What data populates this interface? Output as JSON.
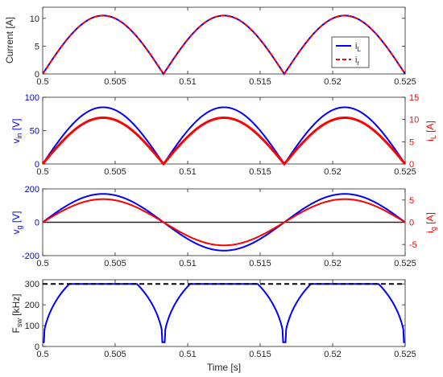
{
  "xlabel": "Time [s]",
  "legend": {
    "iL": "i",
    "iL_sub": "L",
    "ir": "i",
    "ir_sub": "r"
  },
  "chart_data": [
    {
      "type": "line",
      "id": "current",
      "ylabel": "Current [A]",
      "xlim": [
        0.5,
        0.525
      ],
      "ylim": [
        0,
        12
      ],
      "yticks": [
        "0",
        "5",
        "10"
      ],
      "xticks": [
        "0.5",
        "0.505",
        "0.51",
        "0.515",
        "0.52",
        "0.525"
      ],
      "series": [
        {
          "name": "iL",
          "color": "#0000ff",
          "style": "solid",
          "peak": 10.5,
          "shape": "abs-sine",
          "f": 60
        },
        {
          "name": "ir",
          "color": "#ff0000",
          "style": "dashed",
          "peak": 10.5,
          "shape": "abs-sine",
          "f": 60
        }
      ],
      "legend_position": "right"
    },
    {
      "type": "line",
      "id": "vin-il",
      "ylabel_left": "v",
      "ylabel_left_sub": "in",
      "ylabel_left_unit": "[V]",
      "ylabel_right": "i",
      "ylabel_right_sub": "L",
      "ylabel_right_unit": "[A]",
      "xlim": [
        0.5,
        0.525
      ],
      "ylim_left": [
        0,
        100
      ],
      "ylim_right": [
        0,
        15
      ],
      "yticks_left": [
        "0",
        "50",
        "100"
      ],
      "yticks_right": [
        "0",
        "5",
        "10",
        "15"
      ],
      "xticks": [
        "0.5",
        "0.505",
        "0.51",
        "0.515",
        "0.52",
        "0.525"
      ],
      "series": [
        {
          "color": "#0000ff",
          "axis": "left",
          "peak": 85,
          "shape": "abs-sine",
          "f": 60
        },
        {
          "color": "#ff0000",
          "axis": "right",
          "peak": 10.4,
          "shape": "abs-sine",
          "f": 60
        }
      ]
    },
    {
      "type": "line",
      "id": "vg-ig",
      "ylabel_left": "v",
      "ylabel_left_sub": "g",
      "ylabel_left_unit": "[V]",
      "ylabel_right": "i",
      "ylabel_right_sub": "g",
      "ylabel_right_unit": "[A]",
      "xlim": [
        0.5,
        0.525
      ],
      "ylim_left": [
        -200,
        200
      ],
      "ylim_right": [
        -7.5,
        7.5
      ],
      "yticks_left": [
        "-200",
        "0",
        "200"
      ],
      "yticks_right": [
        "-5",
        "0",
        "5"
      ],
      "xticks": [
        "0.5",
        "0.505",
        "0.51",
        "0.515",
        "0.52",
        "0.525"
      ],
      "series": [
        {
          "color": "#0000ff",
          "axis": "left",
          "peak": 170,
          "shape": "sine",
          "f": 60
        },
        {
          "color": "#ff0000",
          "axis": "right",
          "peak": 5.2,
          "shape": "sine",
          "f": 60
        }
      ]
    },
    {
      "type": "line",
      "id": "fsw",
      "ylabel": "F",
      "ylabel_sub": "sw",
      "ylabel_unit": "[kHz]",
      "xlim": [
        0.5,
        0.525
      ],
      "ylim": [
        0,
        320
      ],
      "yticks": [
        "0",
        "100",
        "200",
        "300"
      ],
      "xticks": [
        "0.5",
        "0.505",
        "0.51",
        "0.515",
        "0.52",
        "0.525"
      ],
      "series": [
        {
          "color": "#0000ff",
          "style": "solid",
          "max": 300,
          "shape": "clipped-abs-sine",
          "f": 60
        },
        {
          "color": "#000000",
          "style": "dashed",
          "value": 300,
          "shape": "constant"
        }
      ]
    }
  ]
}
